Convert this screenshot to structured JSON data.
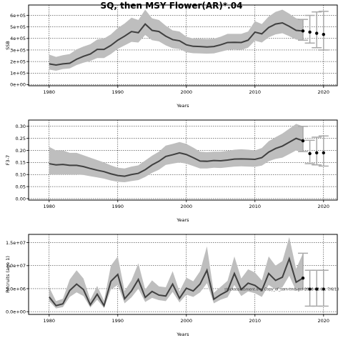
{
  "title": "SQ, then MSY Flower(AR)*.04",
  "colors": {
    "band": "#bebebe",
    "line": "#404040",
    "point": "#000000",
    "proj": "#a9a9a9",
    "grid": "#000000"
  },
  "chart_data": [
    {
      "type": "line",
      "xlabel": "Years",
      "ylabel": "SSB",
      "xlim": [
        1977,
        2022
      ],
      "ylim": [
        -10000,
        690000
      ],
      "xticks": [
        1980,
        1990,
        2000,
        2010,
        2020
      ],
      "xtick_labels": [
        "1980",
        "1990",
        "2000",
        "2010",
        "2020"
      ],
      "yticks": [
        0,
        100000,
        200000,
        300000,
        400000,
        500000,
        600000
      ],
      "ytick_labels": [
        "0e+00",
        "1e+05",
        "2e+05",
        "3e+05",
        "4e+05",
        "5e+05",
        "6e+05"
      ],
      "grid": true,
      "series": [
        {
          "x": [
            1980,
            1981,
            1982,
            1983,
            1984,
            1985,
            1986,
            1987,
            1988,
            1989,
            1990,
            1991,
            1992,
            1993,
            1994,
            1995,
            1996,
            1997,
            1998,
            1999,
            2000,
            2001,
            2002,
            2003,
            2004,
            2005,
            2006,
            2007,
            2008,
            2009,
            2010,
            2011,
            2012,
            2013,
            2014,
            2015,
            2016,
            2017
          ],
          "y": [
            180000,
            170000,
            180000,
            185000,
            220000,
            245000,
            265000,
            305000,
            305000,
            340000,
            385000,
            420000,
            460000,
            450000,
            525000,
            470000,
            460000,
            420000,
            390000,
            380000,
            345000,
            332000,
            330000,
            326000,
            330000,
            345000,
            365000,
            366000,
            365000,
            385000,
            455000,
            440000,
            495000,
            525000,
            535000,
            505000,
            470000,
            465000
          ],
          "lower": [
            130000,
            120000,
            135000,
            140000,
            170000,
            190000,
            205000,
            230000,
            230000,
            265000,
            310000,
            340000,
            370000,
            365000,
            430000,
            385000,
            375000,
            340000,
            315000,
            308000,
            280000,
            272000,
            270000,
            268000,
            270000,
            285000,
            300000,
            305000,
            300000,
            320000,
            380000,
            365000,
            410000,
            435000,
            445000,
            420000,
            390000,
            385000
          ],
          "upper": [
            260000,
            240000,
            255000,
            265000,
            305000,
            330000,
            350000,
            390000,
            400000,
            435000,
            490000,
            530000,
            580000,
            560000,
            650000,
            575000,
            560000,
            510000,
            470000,
            460000,
            415000,
            400000,
            398000,
            395000,
            398000,
            415000,
            440000,
            440000,
            440000,
            460000,
            550000,
            525000,
            590000,
            630000,
            650000,
            615000,
            575000,
            565000
          ]
        }
      ],
      "projection": [
        {
          "x": 2017,
          "y": 465000,
          "lower": 385000,
          "upper": 565000
        },
        {
          "x": 2018,
          "y": 455000,
          "lower": 360000,
          "upper": 600000
        },
        {
          "x": 2019,
          "y": 445000,
          "lower": 320000,
          "upper": 630000
        },
        {
          "x": 2020,
          "y": 435000,
          "lower": 300000,
          "upper": 635000
        }
      ]
    },
    {
      "type": "line",
      "xlabel": "Years",
      "ylabel": "F3-7",
      "xlim": [
        1977,
        2022
      ],
      "ylim": [
        -0.006,
        0.326
      ],
      "xticks": [
        1980,
        1990,
        2000,
        2010,
        2020
      ],
      "xtick_labels": [
        "1980",
        "1990",
        "2000",
        "2010",
        "2020"
      ],
      "yticks": [
        0,
        0.05,
        0.1,
        0.15,
        0.2,
        0.25,
        0.3
      ],
      "ytick_labels": [
        "0.00",
        "0.05",
        "0.10",
        "0.15",
        "0.20",
        "0.25",
        "0.30"
      ],
      "grid": true,
      "series": [
        {
          "x": [
            1980,
            1981,
            1982,
            1983,
            1984,
            1985,
            1986,
            1987,
            1988,
            1989,
            1990,
            1991,
            1992,
            1993,
            1994,
            1995,
            1996,
            1997,
            1998,
            1999,
            2000,
            2001,
            2002,
            2003,
            2004,
            2005,
            2006,
            2007,
            2008,
            2009,
            2010,
            2011,
            2012,
            2013,
            2014,
            2015,
            2016,
            2017
          ],
          "y": [
            0.145,
            0.14,
            0.142,
            0.138,
            0.138,
            0.133,
            0.125,
            0.118,
            0.112,
            0.103,
            0.096,
            0.093,
            0.1,
            0.105,
            0.12,
            0.14,
            0.155,
            0.175,
            0.182,
            0.19,
            0.183,
            0.17,
            0.156,
            0.155,
            0.158,
            0.157,
            0.16,
            0.164,
            0.165,
            0.164,
            0.163,
            0.17,
            0.193,
            0.208,
            0.218,
            0.234,
            0.25,
            0.24
          ],
          "lower": [
            0.1,
            0.1,
            0.1,
            0.1,
            0.1,
            0.098,
            0.093,
            0.088,
            0.083,
            0.075,
            0.07,
            0.068,
            0.073,
            0.077,
            0.09,
            0.107,
            0.12,
            0.14,
            0.145,
            0.15,
            0.145,
            0.135,
            0.125,
            0.125,
            0.128,
            0.127,
            0.13,
            0.133,
            0.134,
            0.133,
            0.132,
            0.137,
            0.155,
            0.165,
            0.17,
            0.185,
            0.2,
            0.195
          ],
          "upper": [
            0.215,
            0.2,
            0.2,
            0.19,
            0.19,
            0.18,
            0.17,
            0.16,
            0.15,
            0.138,
            0.128,
            0.125,
            0.133,
            0.138,
            0.158,
            0.178,
            0.195,
            0.22,
            0.227,
            0.235,
            0.227,
            0.212,
            0.195,
            0.193,
            0.195,
            0.195,
            0.198,
            0.203,
            0.205,
            0.203,
            0.2,
            0.21,
            0.238,
            0.255,
            0.27,
            0.29,
            0.31,
            0.3
          ]
        }
      ],
      "projection": [
        {
          "x": 2017,
          "y": 0.24,
          "lower": 0.195,
          "upper": 0.3
        },
        {
          "x": 2018,
          "y": 0.187,
          "lower": 0.145,
          "upper": 0.242
        },
        {
          "x": 2019,
          "y": 0.19,
          "lower": 0.14,
          "upper": 0.255
        },
        {
          "x": 2020,
          "y": 0.19,
          "lower": 0.135,
          "upper": 0.26
        }
      ]
    },
    {
      "type": "line",
      "xlabel": "Years",
      "ylabel": "Recruits (age 1)",
      "xlim": [
        1977,
        2022
      ],
      "ylim": [
        -600000,
        16800000
      ],
      "xticks": [
        1980,
        1990,
        2000,
        2010,
        2020
      ],
      "xtick_labels": [
        "1980",
        "1990",
        "2000",
        "2010",
        "2020"
      ],
      "yticks": [
        0,
        5000000,
        10000000,
        15000000
      ],
      "ytick_labels": [
        "0.0e+00",
        "5.0e+06",
        "1.0e+07",
        "1.5e+07"
      ],
      "grid": true,
      "annotation": "stockassessment.org, Copy_of_sam-tmb-gul-2018-02-01, 7/6/18",
      "series": [
        {
          "x": [
            1980,
            1981,
            1982,
            1983,
            1984,
            1985,
            1986,
            1987,
            1988,
            1989,
            1990,
            1991,
            1992,
            1993,
            1994,
            1995,
            1996,
            1997,
            1998,
            1999,
            2000,
            2001,
            2002,
            2003,
            2004,
            2005,
            2006,
            2007,
            2008,
            2009,
            2010,
            2011,
            2012,
            2013,
            2014,
            2015,
            2016,
            2017
          ],
          "y": [
            3200000,
            1300000,
            1700000,
            4600000,
            6000000,
            4800000,
            1500000,
            3800000,
            1300000,
            6600000,
            8100000,
            2800000,
            4500000,
            7000000,
            3100000,
            4400000,
            3600000,
            3400000,
            6000000,
            2900000,
            5100000,
            4500000,
            6000000,
            9000000,
            2700000,
            3700000,
            4500000,
            8300000,
            4800000,
            6200000,
            5700000,
            4600000,
            8300000,
            6800000,
            7500000,
            11500000,
            6400000,
            7300000
          ],
          "lower": [
            2300000,
            700000,
            1000000,
            3200000,
            4200000,
            3400000,
            900000,
            2600000,
            800000,
            4800000,
            5800000,
            1800000,
            3100000,
            5000000,
            2100000,
            3000000,
            2500000,
            2300000,
            4300000,
            2000000,
            3700000,
            3200000,
            4200000,
            6200000,
            1800000,
            2600000,
            3100000,
            5800000,
            3400000,
            4400000,
            4000000,
            3200000,
            5800000,
            4800000,
            5300000,
            7800000,
            4500000,
            5000000
          ],
          "upper": [
            5300000,
            2300000,
            2800000,
            7000000,
            9000000,
            7200000,
            2600000,
            5600000,
            2400000,
            10000000,
            12000000,
            4500000,
            6800000,
            10500000,
            4800000,
            6800000,
            5500000,
            5300000,
            8800000,
            4400000,
            7400000,
            6600000,
            8800000,
            14200000,
            4100000,
            5400000,
            6700000,
            12000000,
            7200000,
            9200000,
            8500000,
            6800000,
            12000000,
            10000000,
            11000000,
            16200000,
            9300000,
            12700000
          ]
        }
      ],
      "projection": [
        {
          "x": 2017,
          "y": 7300000,
          "lower": 5000000,
          "upper": 12700000
        },
        {
          "x": 2018,
          "y": 4900000,
          "lower": 1200000,
          "upper": 9000000
        },
        {
          "x": 2019,
          "y": 4900000,
          "lower": 1200000,
          "upper": 9000000
        },
        {
          "x": 2020,
          "y": 4900000,
          "lower": 1200000,
          "upper": 9000000
        }
      ]
    }
  ]
}
